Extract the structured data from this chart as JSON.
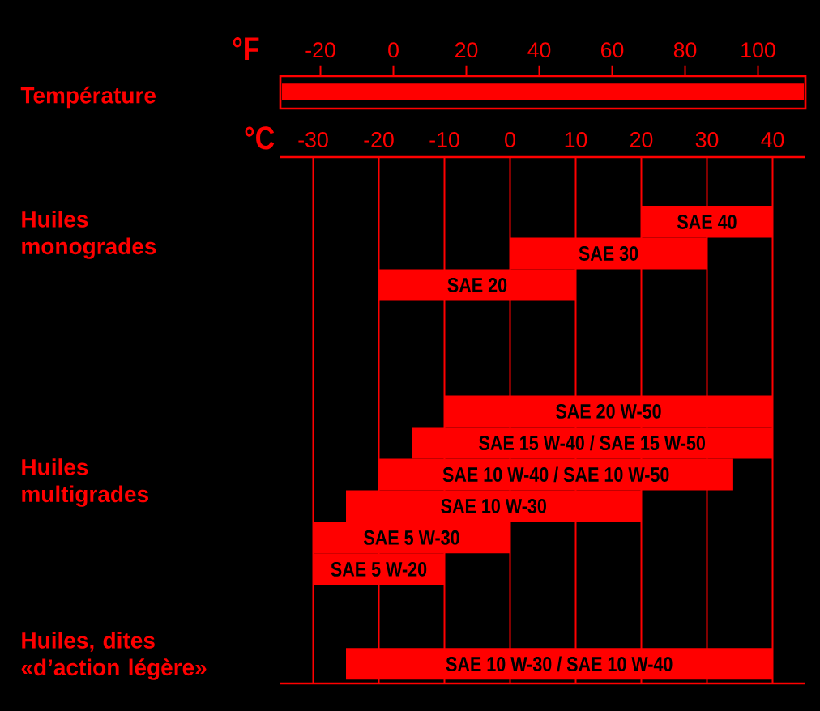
{
  "chart_data": {
    "type": "bar",
    "orientation": "horizontal",
    "categories": [
      "SAE 40",
      "SAE 30",
      "SAE 20",
      null,
      null,
      null,
      "SAE 20 W-50",
      "SAE 15 W-40 / SAE 15 W-50",
      "SAE 10 W-40 / SAE 10 W-50",
      "SAE 10 W-30",
      "SAE 5 W-30",
      "SAE 5 W-20",
      null,
      null,
      "SAE 10 W-30 / SAE 10 W-40"
    ],
    "base": [
      20,
      0,
      -20,
      null,
      null,
      null,
      -10,
      -15,
      -20,
      -25,
      -30,
      -30,
      null,
      null,
      -25
    ],
    "values": [
      20,
      30,
      30,
      null,
      null,
      null,
      50,
      55,
      54,
      45,
      30,
      20,
      null,
      null,
      65
    ],
    "color": "#ff0000",
    "xlabel": "°C",
    "xlim": [
      -35,
      45
    ],
    "xticks": [
      -30,
      -20,
      -10,
      0,
      10,
      20,
      30,
      40
    ],
    "x2label": "°F",
    "x2lim": [
      -31,
      113
    ],
    "x2ticks": [
      -20,
      0,
      20,
      40,
      60,
      80,
      100
    ],
    "grid": "x",
    "annotations": [
      "Température",
      "Huiles monogrades",
      "Huiles multigrades",
      "Huiles, dites «d’action légère»"
    ]
  }
}
